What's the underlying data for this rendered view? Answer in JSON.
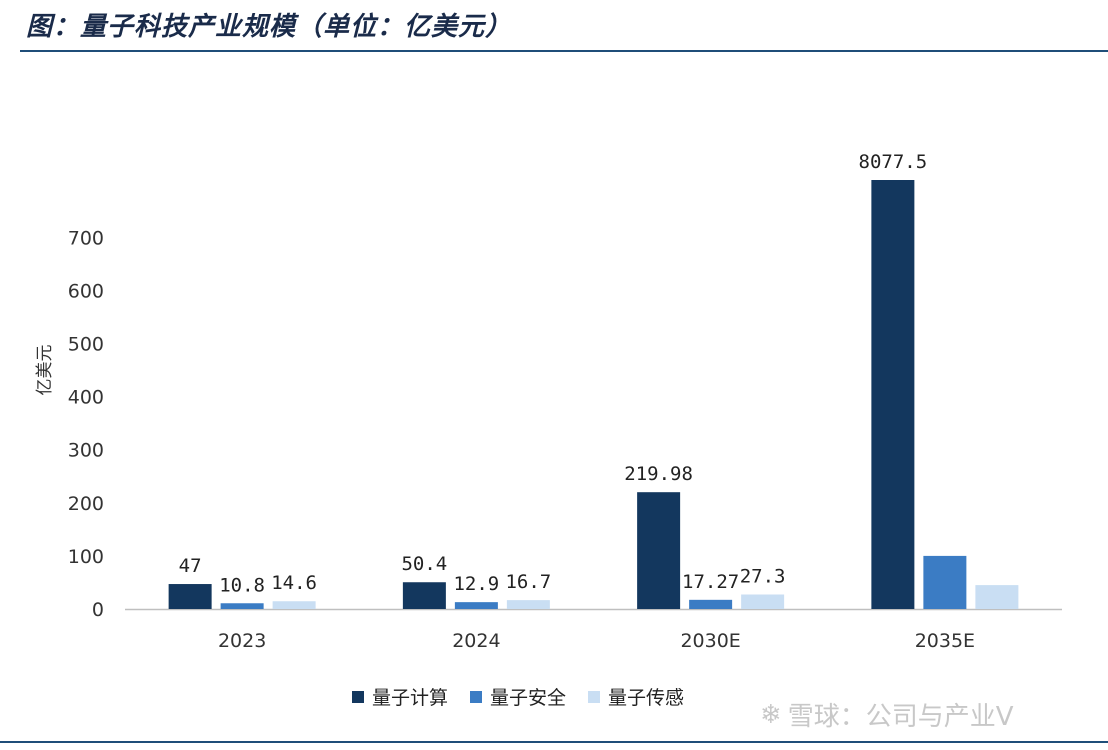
{
  "header": {
    "title": "图：量子科技产业规模（单位：亿美元）"
  },
  "watermark": {
    "text": "雪球：公司与产业V",
    "icon": "snowball-logo-icon"
  },
  "chart_data": {
    "type": "bar",
    "categories": [
      "2023",
      "2024",
      "2030E",
      "2035E"
    ],
    "series": [
      {
        "name": "量子计算",
        "color": "#13375e",
        "values": [
          47,
          50.4,
          219.98,
          8077.5
        ],
        "labels": [
          "47",
          "50.4",
          "219.98",
          "8077.5"
        ]
      },
      {
        "name": "量子安全",
        "color": "#3b7cc4",
        "values": [
          10.8,
          12.9,
          17.27,
          100
        ],
        "labels": [
          "10.8",
          "12.9",
          "17.27",
          ""
        ]
      },
      {
        "name": "量子传感",
        "color": "#c9def3",
        "values": [
          14.6,
          16.7,
          27.3,
          45
        ],
        "labels": [
          "14.6",
          "16.7",
          "27.3",
          ""
        ]
      }
    ],
    "ylabel": "亿美元",
    "ylim": [
      0,
      700
    ],
    "yticks": [
      0,
      100,
      200,
      300,
      400,
      500,
      600,
      700
    ],
    "axis_break": "last category first series exceeds axis max",
    "legend_position": "bottom"
  }
}
